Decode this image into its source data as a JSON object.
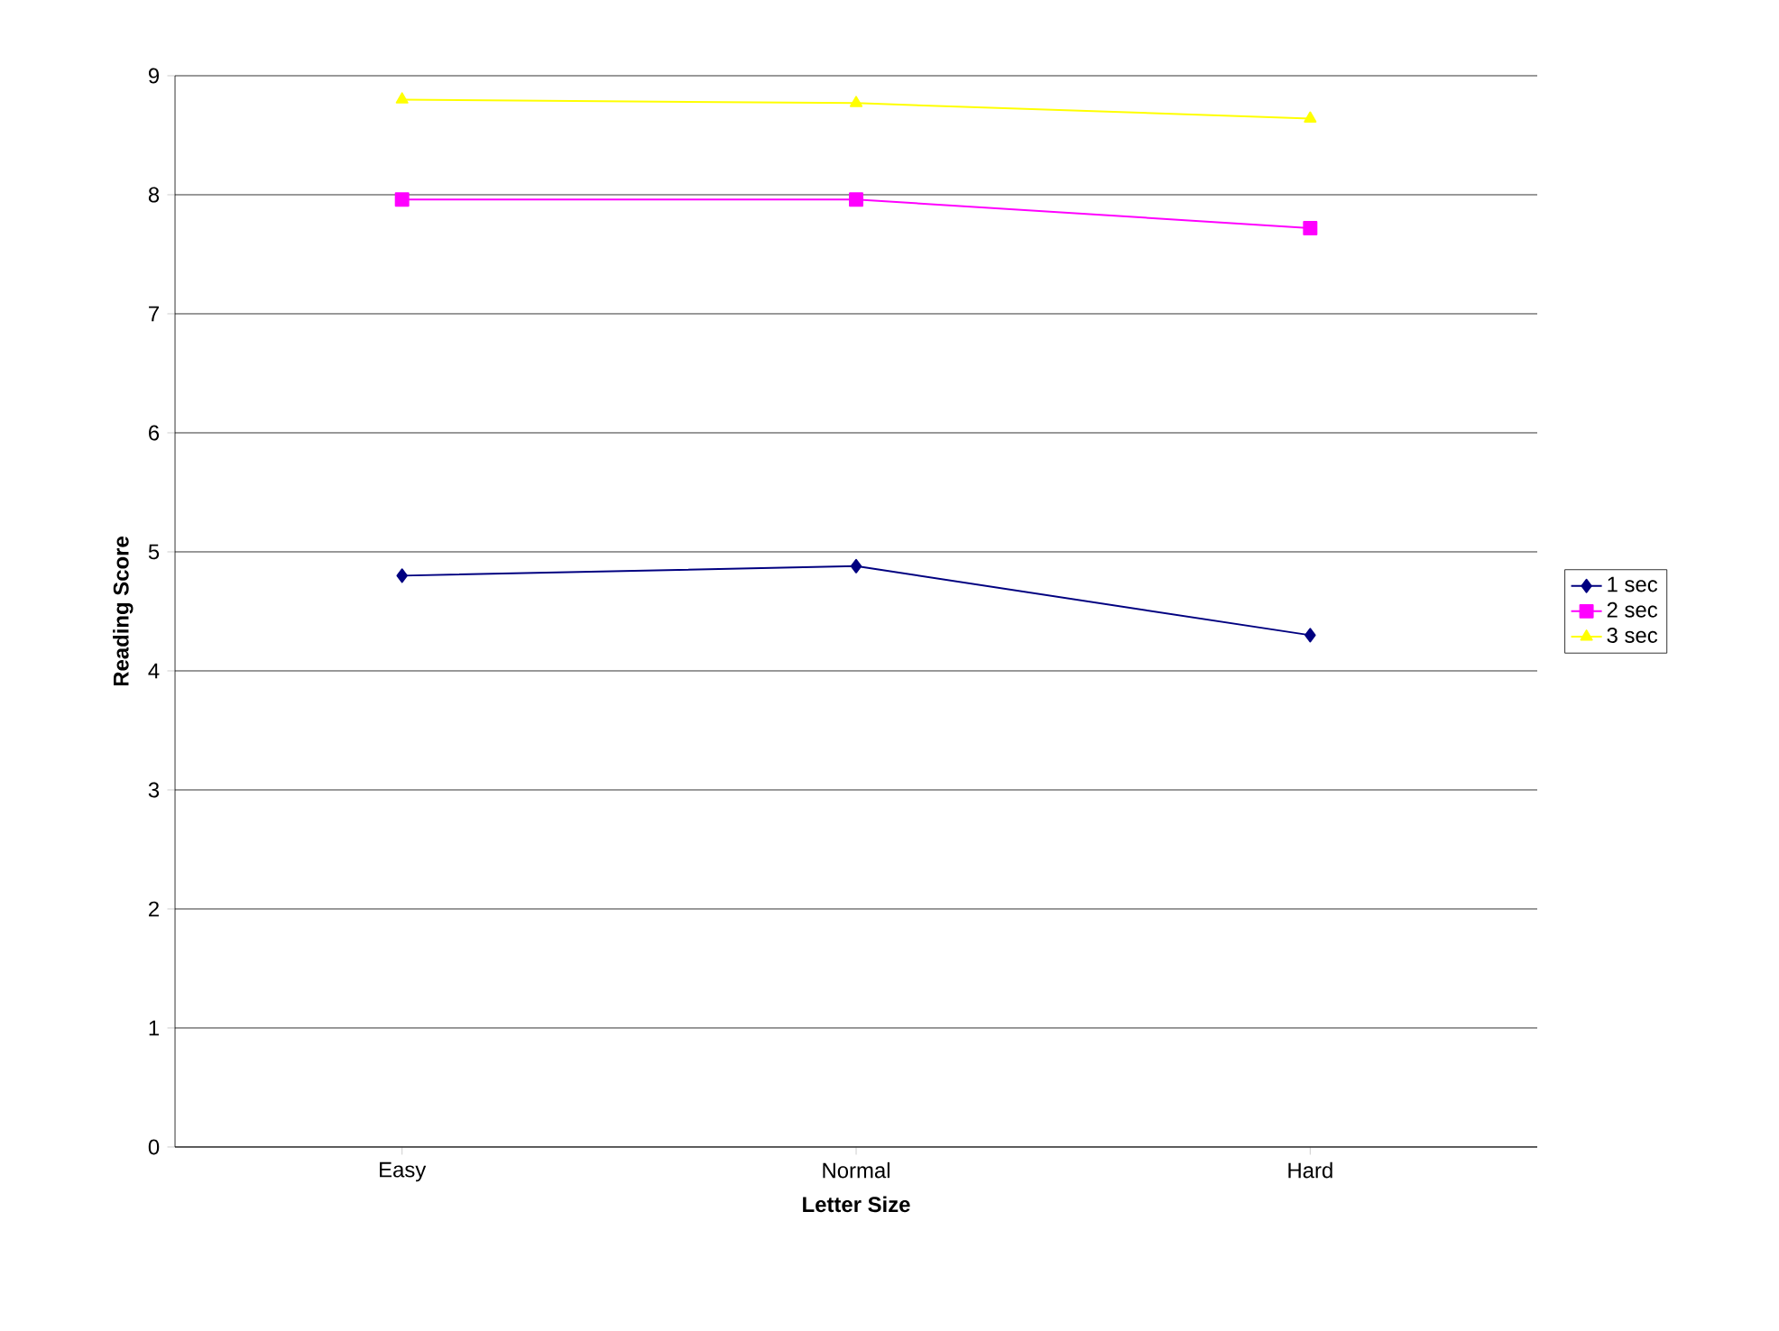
{
  "chart_data": {
    "type": "line",
    "xlabel": "Letter Size",
    "ylabel": "Reading Score",
    "categories": [
      "Easy",
      "Normal",
      "Hard"
    ],
    "series": [
      {
        "name": "1 sec",
        "color": "#000080",
        "marker": "diamond",
        "values": [
          4.8,
          4.88,
          4.3
        ]
      },
      {
        "name": "2 sec",
        "color": "#ff00ff",
        "marker": "square",
        "values": [
          7.96,
          7.96,
          7.72
        ]
      },
      {
        "name": "3 sec",
        "color": "#ffff00",
        "marker": "triangle",
        "values": [
          8.8,
          8.77,
          8.64
        ]
      }
    ],
    "ylim": [
      0,
      9
    ],
    "yticks": [
      0,
      1,
      2,
      3,
      4,
      5,
      6,
      7,
      8,
      9
    ],
    "grid": "y",
    "legend": "right"
  }
}
